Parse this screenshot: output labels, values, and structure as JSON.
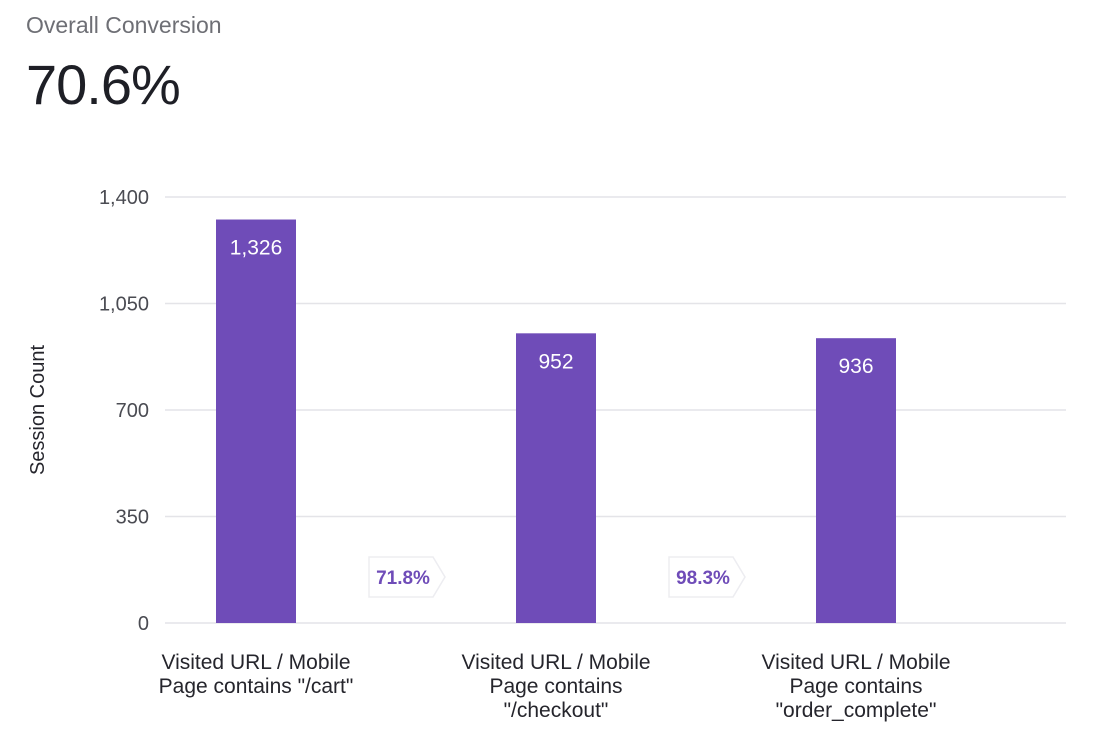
{
  "summary": {
    "label": "Overall Conversion",
    "value": "70.6%"
  },
  "colors": {
    "bar": "#6f4cb8",
    "gridline": "#e4e4e8",
    "axis_text": "#4a4b52",
    "conversion_text": "#6f4cb8",
    "bar_label_text": "#ffffff"
  },
  "chart_data": {
    "type": "bar",
    "ylabel": "Session Count",
    "ylim": [
      0,
      1400
    ],
    "y_ticks": [
      0,
      350,
      700,
      1050,
      1400
    ],
    "y_tick_labels": [
      "0",
      "350",
      "700",
      "1,050",
      "1,400"
    ],
    "grid": true,
    "categories": [
      [
        "Visited URL / Mobile",
        "Page contains \"/cart\""
      ],
      [
        "Visited URL / Mobile",
        "Page contains",
        "\"/checkout\""
      ],
      [
        "Visited URL / Mobile",
        "Page contains",
        "\"order_complete\""
      ]
    ],
    "values": [
      1326,
      952,
      936
    ],
    "value_labels": [
      "1,326",
      "952",
      "936"
    ],
    "step_conversions": [
      "71.8%",
      "98.3%"
    ]
  }
}
